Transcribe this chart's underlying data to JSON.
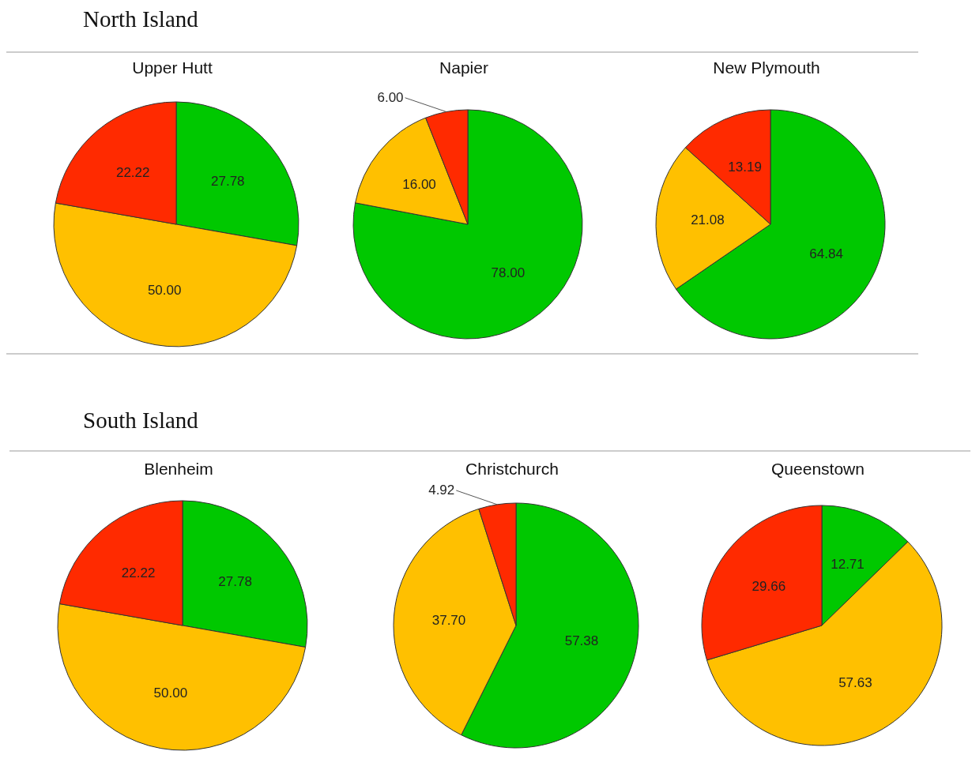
{
  "chart_data": [
    {
      "type": "pie",
      "title": "Upper Hutt",
      "annotations": [
        "North Island"
      ],
      "categories": [
        null,
        null,
        null
      ],
      "values": [
        27.78,
        50.0,
        22.22
      ],
      "colors": [
        "#00c800",
        "#ffc000",
        "#ff2a00"
      ],
      "value_labels": [
        "27.78",
        "50.00",
        "22.22"
      ],
      "legend": false
    },
    {
      "type": "pie",
      "title": "Napier",
      "categories": [
        null,
        null,
        null
      ],
      "values": [
        78.0,
        16.0,
        6.0
      ],
      "colors": [
        "#00c800",
        "#ffc000",
        "#ff2a00"
      ],
      "value_labels": [
        "78.00",
        "16.00",
        "6.00"
      ],
      "legend": false
    },
    {
      "type": "pie",
      "title": "New Plymouth",
      "categories": [
        null,
        null,
        null
      ],
      "values": [
        64.84,
        21.08,
        13.19
      ],
      "colors": [
        "#00c800",
        "#ffc000",
        "#ff2a00"
      ],
      "value_labels": [
        "64.84",
        "21.08",
        "13.19"
      ],
      "legend": false
    },
    {
      "type": "pie",
      "title": "Blenheim",
      "annotations": [
        "South Island"
      ],
      "categories": [
        null,
        null,
        null
      ],
      "values": [
        27.78,
        50.0,
        22.22
      ],
      "colors": [
        "#00c800",
        "#ffc000",
        "#ff2a00"
      ],
      "value_labels": [
        "27.78",
        "50.00",
        "22.22"
      ],
      "legend": false
    },
    {
      "type": "pie",
      "title": "Christchurch",
      "categories": [
        null,
        null,
        null
      ],
      "values": [
        57.38,
        37.7,
        4.92
      ],
      "colors": [
        "#00c800",
        "#ffc000",
        "#ff2a00"
      ],
      "value_labels": [
        "57.38",
        "37.70",
        "4.92"
      ],
      "legend": false
    },
    {
      "type": "pie",
      "title": "Queenstown",
      "categories": [
        null,
        null,
        null
      ],
      "values": [
        12.71,
        57.63,
        29.66
      ],
      "colors": [
        "#00c800",
        "#ffc000",
        "#ff2a00"
      ],
      "value_labels": [
        "12.71",
        "57.63",
        "29.66"
      ],
      "legend": false
    }
  ]
}
